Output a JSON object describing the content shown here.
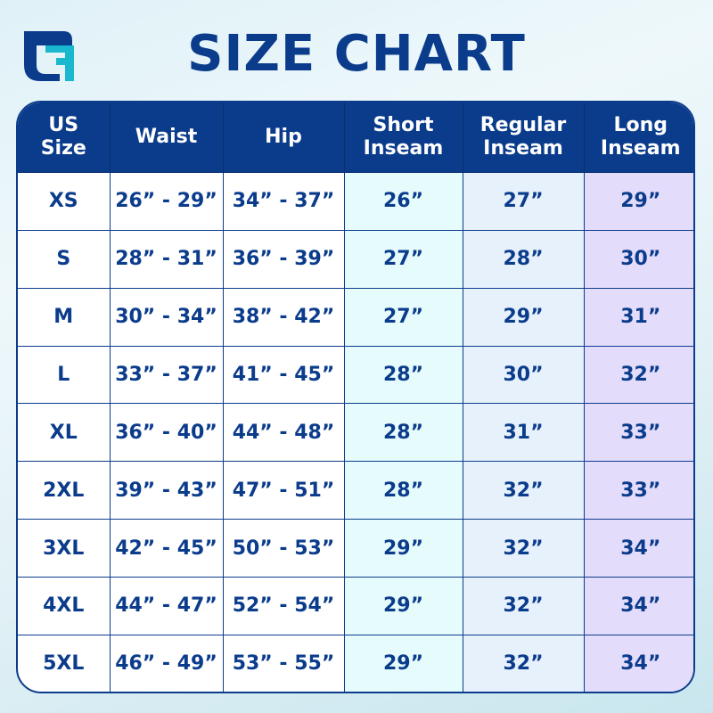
{
  "brand": {
    "logo_colors": [
      "#0b3c8c",
      "#1ab8cf"
    ]
  },
  "title": "SIZE CHART",
  "colors": {
    "header": "#0b3c8c",
    "text": "#0b3c8c",
    "short_bg": "#e6fbfb",
    "regular_bg": "#e7f1fc",
    "long_bg": "#e4dcfb"
  },
  "table": {
    "headers": [
      [
        "US",
        "Size"
      ],
      [
        "Waist",
        ""
      ],
      [
        "Hip",
        ""
      ],
      [
        "Short",
        "Inseam"
      ],
      [
        "Regular",
        "Inseam"
      ],
      [
        "Long",
        "Inseam"
      ]
    ],
    "rows": [
      [
        "XS",
        "26” - 29”",
        "34” - 37”",
        "26”",
        "27”",
        "29”"
      ],
      [
        "S",
        "28” - 31”",
        "36” - 39”",
        "27”",
        "28”",
        "30”"
      ],
      [
        "M",
        "30” - 34”",
        "38” - 42”",
        "27”",
        "29”",
        "31”"
      ],
      [
        "L",
        "33” - 37”",
        "41” - 45”",
        "28”",
        "30”",
        "32”"
      ],
      [
        "XL",
        "36” - 40”",
        "44” - 48”",
        "28”",
        "31”",
        "33”"
      ],
      [
        "2XL",
        "39” - 43”",
        "47” - 51”",
        "28”",
        "32”",
        "33”"
      ],
      [
        "3XL",
        "42” - 45”",
        "50” - 53”",
        "29”",
        "32”",
        "34”"
      ],
      [
        "4XL",
        "44” - 47”",
        "52” - 54”",
        "29”",
        "32”",
        "34”"
      ],
      [
        "5XL",
        "46” - 49”",
        "53” - 55”",
        "29”",
        "32”",
        "34”"
      ]
    ]
  }
}
